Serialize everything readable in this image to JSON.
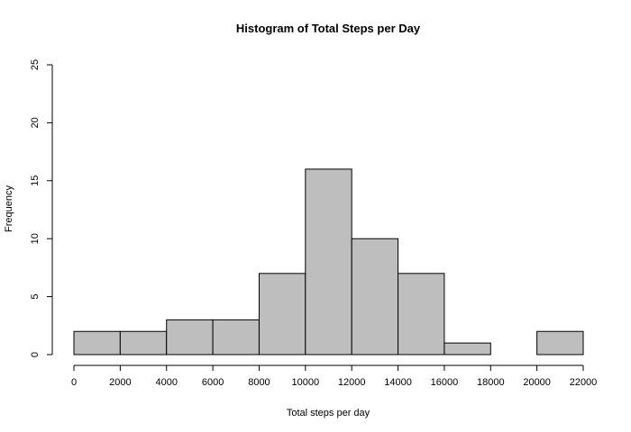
{
  "chart_data": {
    "type": "bar",
    "title": "Histogram of Total Steps per Day",
    "xlabel": "Total steps per day",
    "ylabel": "Frequency",
    "bins": [
      {
        "start": 0,
        "end": 2000,
        "count": 2
      },
      {
        "start": 2000,
        "end": 4000,
        "count": 2
      },
      {
        "start": 4000,
        "end": 6000,
        "count": 3
      },
      {
        "start": 6000,
        "end": 8000,
        "count": 3
      },
      {
        "start": 8000,
        "end": 10000,
        "count": 7
      },
      {
        "start": 10000,
        "end": 12000,
        "count": 16
      },
      {
        "start": 12000,
        "end": 14000,
        "count": 10
      },
      {
        "start": 14000,
        "end": 16000,
        "count": 7
      },
      {
        "start": 16000,
        "end": 18000,
        "count": 1
      },
      {
        "start": 18000,
        "end": 20000,
        "count": 0
      },
      {
        "start": 20000,
        "end": 22000,
        "count": 2
      }
    ],
    "xlim": [
      0,
      22000
    ],
    "ylim": [
      0,
      25
    ],
    "x_ticks": [
      "0",
      "2000",
      "4000",
      "6000",
      "8000",
      "10000",
      "12000",
      "14000",
      "16000",
      "18000",
      "20000",
      "22000"
    ],
    "y_ticks": [
      "0",
      "5",
      "10",
      "15",
      "20",
      "25"
    ],
    "bar_color": "#bebebe",
    "border_color": "#000000",
    "grid": false,
    "legend": "none"
  }
}
